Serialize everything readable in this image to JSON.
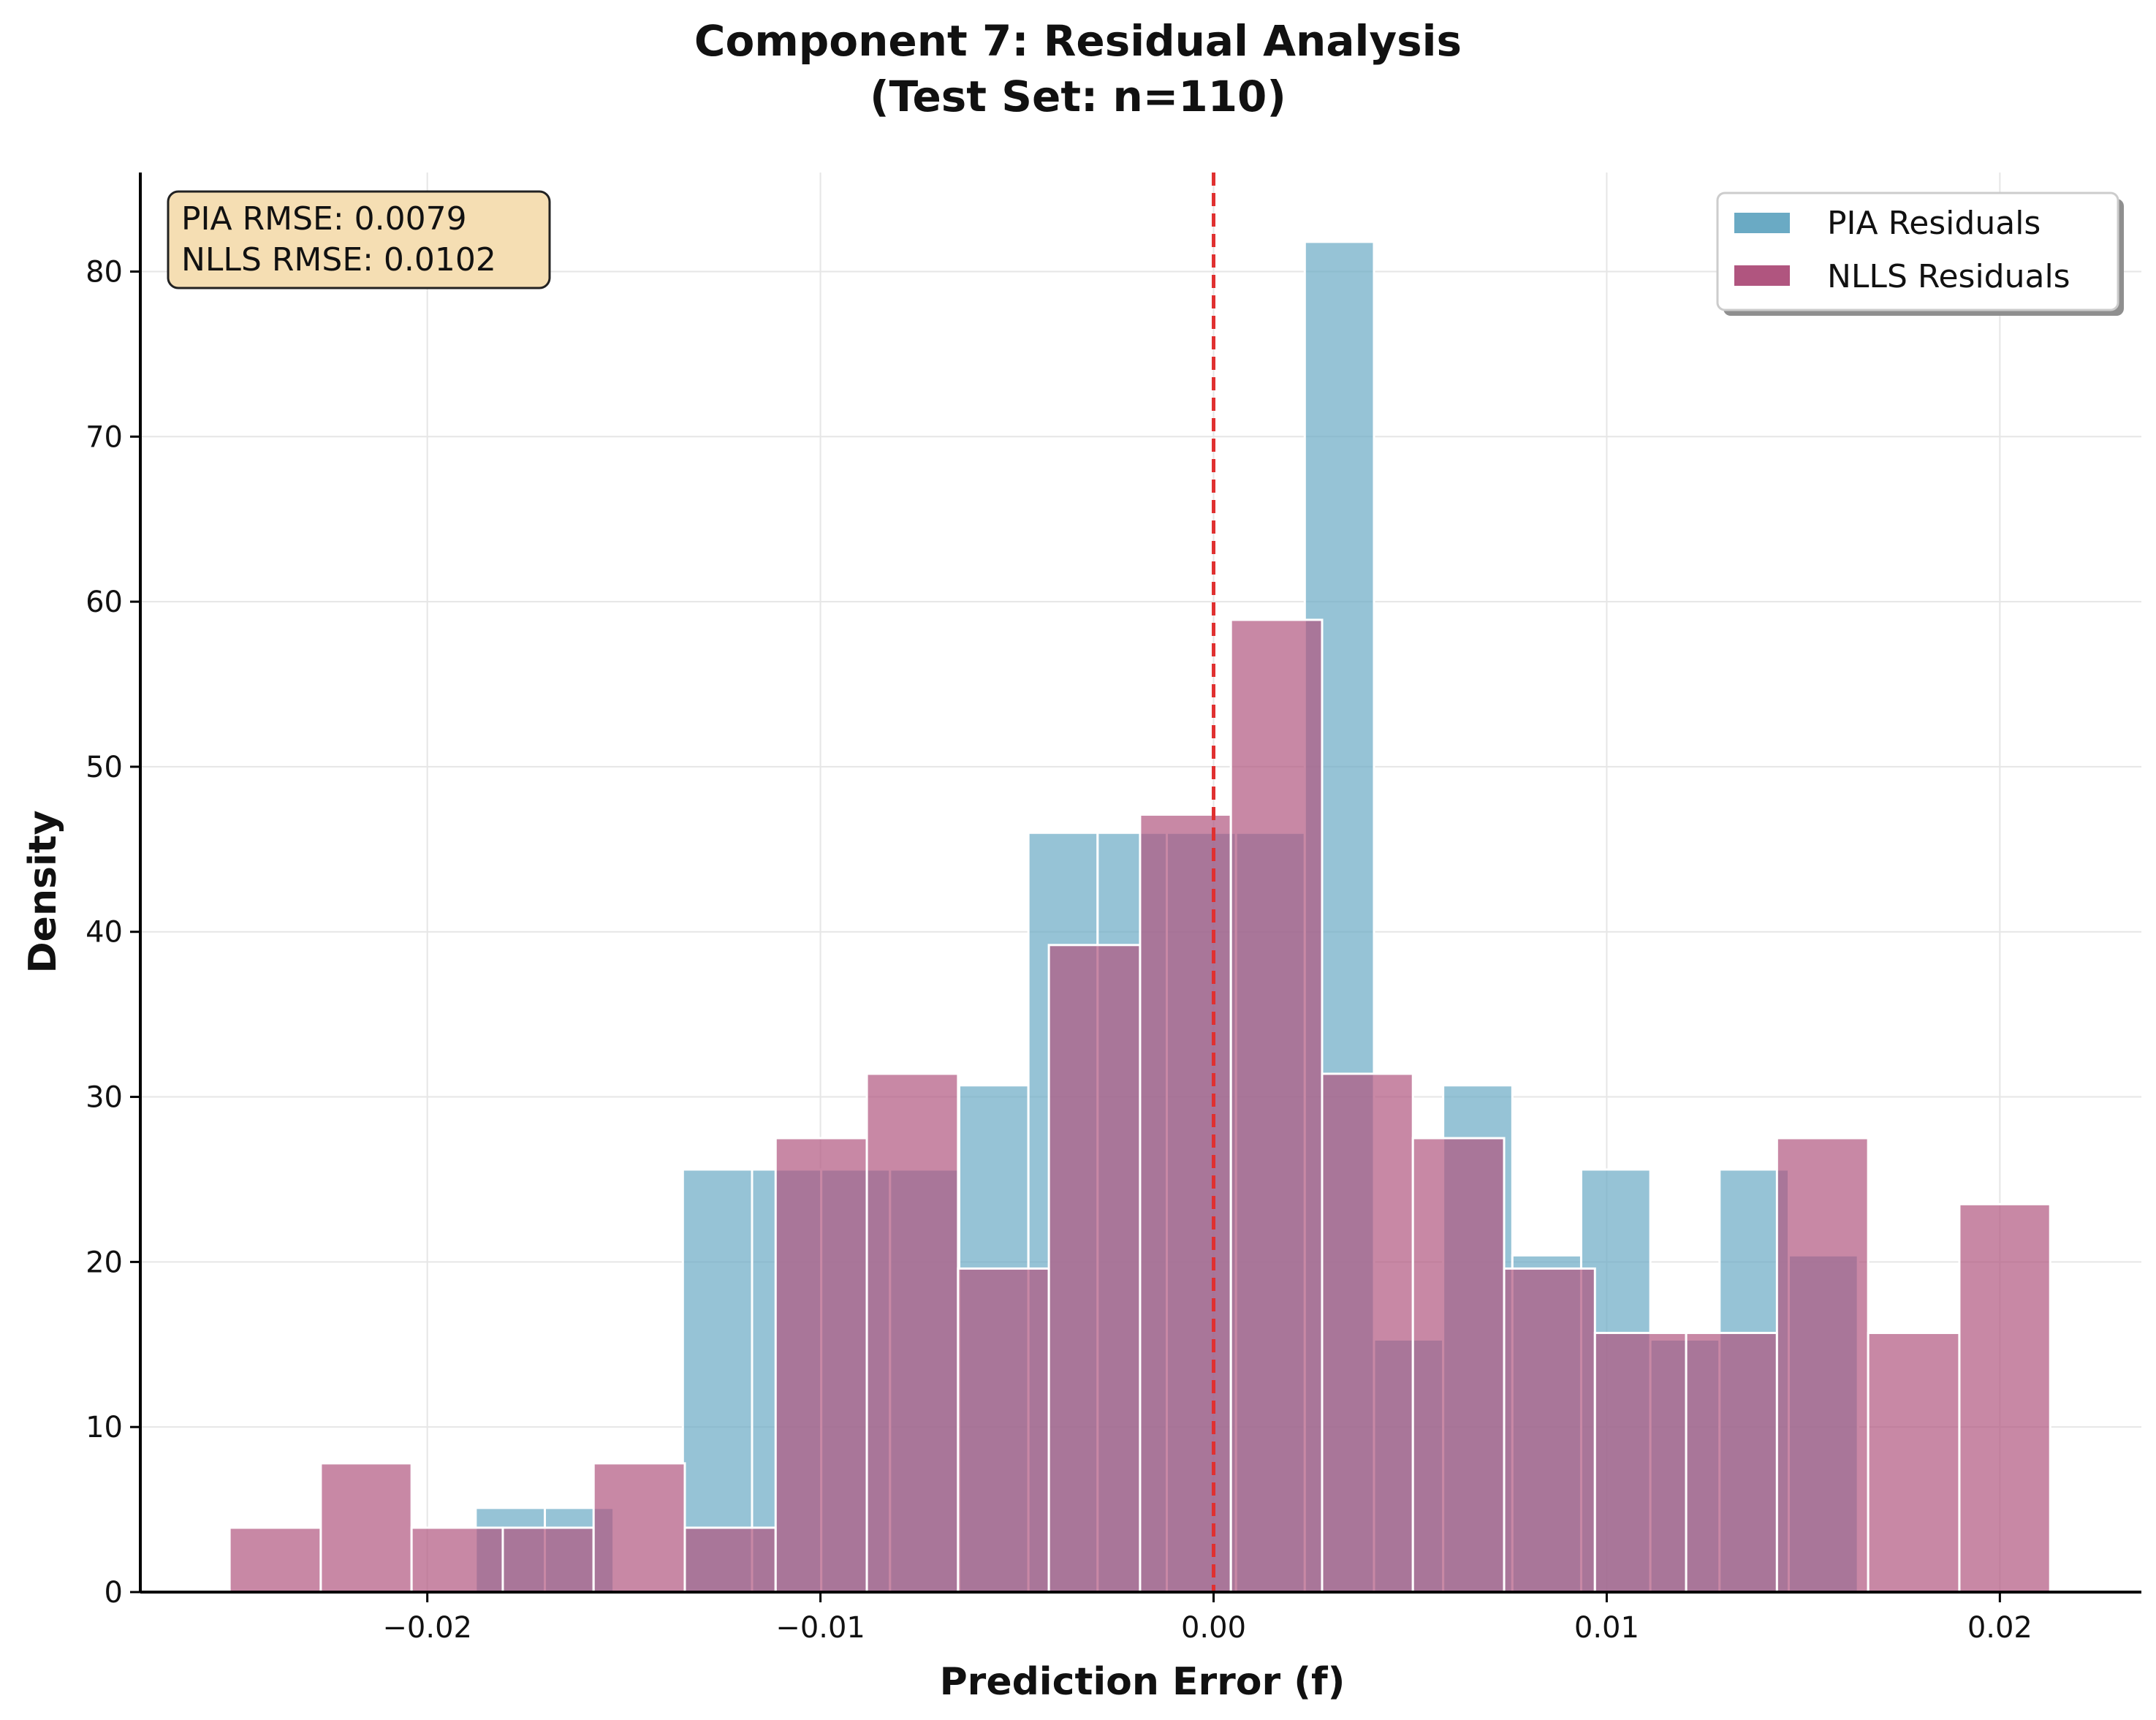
{
  "chart_data": {
    "type": "histogram",
    "title": "Component 7: Residual Analysis",
    "subtitle": "(Test Set: n=110)",
    "xlabel": "Prediction Error (f)",
    "ylabel": "Density",
    "xlim": [
      -0.0273,
      0.0236
    ],
    "ylim": [
      0,
      86
    ],
    "xticks": [
      -0.02,
      -0.01,
      0.0,
      0.01,
      0.02
    ],
    "xtick_labels": [
      "−0.02",
      "−0.01",
      "0.00",
      "0.01",
      "0.02"
    ],
    "yticks": [
      0,
      10,
      20,
      30,
      40,
      50,
      60,
      70,
      80
    ],
    "ytick_labels": [
      "0",
      "10",
      "20",
      "30",
      "40",
      "50",
      "60",
      "70",
      "80"
    ],
    "grid": true,
    "legend_position": "top-right",
    "reference_line": {
      "x": 0.0,
      "style": "dashed",
      "color": "#e03030"
    },
    "stats_box": {
      "lines": [
        "PIA RMSE: 0.0079",
        "NLLS RMSE: 0.0102"
      ],
      "position": "top-left",
      "background": "#f5deb3"
    },
    "series": [
      {
        "name": "PIA Residuals",
        "color": "#6aaac4",
        "bin_edges": [
          -0.01877,
          -0.01701,
          -0.01526,
          -0.0135,
          -0.01174,
          -0.00998,
          -0.00823,
          -0.00647,
          -0.00471,
          -0.00295,
          -0.00119,
          0.00057,
          0.00232,
          0.00408,
          0.00584,
          0.0076,
          0.00935,
          0.01111,
          0.01287,
          0.01463,
          0.01639,
          0.01814
        ],
        "values": [
          5.1,
          5.1,
          0,
          25.6,
          25.6,
          25.6,
          25.6,
          30.7,
          46.0,
          46.0,
          46.0,
          46.0,
          81.8,
          15.3,
          30.7,
          20.4,
          25.6,
          15.3,
          25.6,
          20.4,
          0
        ]
      },
      {
        "name": "NLLS Residuals",
        "color": "#b0557f",
        "bin_edges": [
          -0.02503,
          -0.02271,
          -0.0204,
          -0.01808,
          -0.01577,
          -0.01345,
          -0.01114,
          -0.00882,
          -0.0065,
          -0.00419,
          -0.00187,
          0.00044,
          0.00276,
          0.00507,
          0.00739,
          0.0097,
          0.01202,
          0.01433,
          0.01665,
          0.01897,
          0.02128
        ],
        "values": [
          3.9,
          7.8,
          3.9,
          3.9,
          7.8,
          3.9,
          27.5,
          31.4,
          19.6,
          39.2,
          47.1,
          58.9,
          31.4,
          27.5,
          19.6,
          15.7,
          15.7,
          27.5,
          15.7,
          23.5
        ]
      }
    ]
  }
}
